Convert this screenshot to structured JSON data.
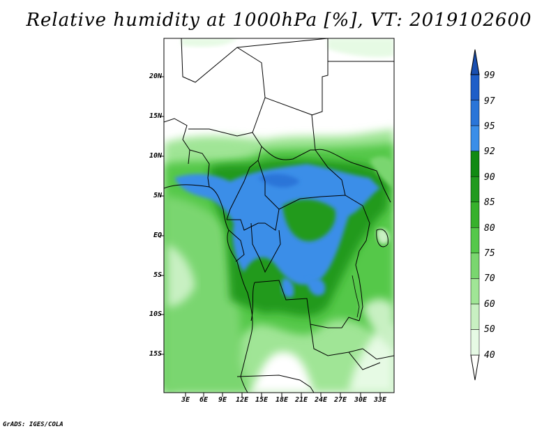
{
  "title": "Relative humidity at 1000hPa [%], VT: 2019102600",
  "footer": "GrADS: IGES/COLA",
  "axes": {
    "lat_labels": [
      "20N",
      "15N",
      "10N",
      "5N",
      "EQ",
      "5S",
      "10S",
      "15S"
    ],
    "lon_labels": [
      "3E",
      "6E",
      "9E",
      "12E",
      "15E",
      "18E",
      "21E",
      "24E",
      "27E",
      "30E",
      "33E"
    ]
  },
  "colorbar": {
    "labels": [
      "99",
      "97",
      "95",
      "92",
      "90",
      "85",
      "80",
      "75",
      "70",
      "60",
      "50",
      "40"
    ],
    "colors": [
      "#fffffc",
      "#e6fae4",
      "#c8f0c2",
      "#a0e596",
      "#7ad66f",
      "#55c84a",
      "#37b12c",
      "#219a1f",
      "#118a13",
      "#3b8ee8",
      "#2a75d8",
      "#1f5ec8"
    ]
  }
}
